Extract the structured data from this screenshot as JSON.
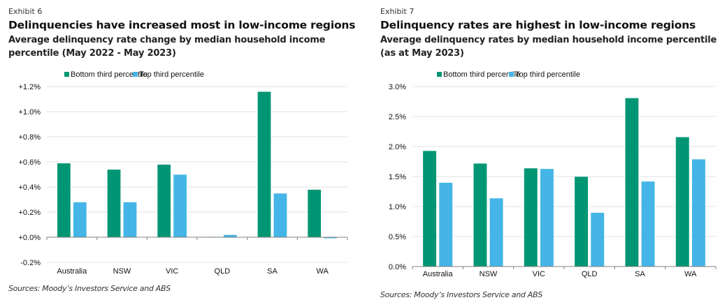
{
  "colors": {
    "bottom": "#009673",
    "top": "#44B5E6",
    "grid": "#e6e6e6",
    "axis": "#808080"
  },
  "chart_data": [
    {
      "type": "bar",
      "exhibit": "Exhibit 6",
      "title": "Delinquencies have increased most in low-income regions",
      "subtitle": "Average delinquency rate change by median household income percentile (May 2022 - May 2023)",
      "source": "Sources: Moody’s Investors Service and ABS",
      "categories": [
        "Australia",
        "NSW",
        "VIC",
        "QLD",
        "SA",
        "WA"
      ],
      "series": [
        {
          "name": "Bottom third percentile",
          "values": [
            0.59,
            0.54,
            0.58,
            0.005,
            1.16,
            0.38
          ]
        },
        {
          "name": "Top third percentile",
          "values": [
            0.28,
            0.28,
            0.5,
            0.02,
            0.35,
            -0.01
          ]
        }
      ],
      "yticks": [
        -0.2,
        0.0,
        0.2,
        0.4,
        0.6,
        0.8,
        1.0,
        1.2
      ],
      "ytick_labels": [
        "-0.2%",
        "+0.0%",
        "+0.2%",
        "+0.4%",
        "+0.6%",
        "+0.8%",
        "+1.0%",
        "+1.2%"
      ],
      "ylim": [
        -0.2,
        1.2
      ],
      "xlabel": "",
      "ylabel": "",
      "grid": true,
      "legend": "top"
    },
    {
      "type": "bar",
      "exhibit": "Exhibit 7",
      "title": "Delinquency rates are highest in low-income regions",
      "subtitle": "Average delinquency rates by median household income percentile (as at May 2023)",
      "source": "Sources: Moody’s Investors Service and ABS",
      "categories": [
        "Australia",
        "NSW",
        "VIC",
        "QLD",
        "SA",
        "WA"
      ],
      "series": [
        {
          "name": "Bottom third percentile",
          "values": [
            1.93,
            1.72,
            1.64,
            1.5,
            2.81,
            2.16
          ]
        },
        {
          "name": "Top third percentile",
          "values": [
            1.4,
            1.14,
            1.63,
            0.9,
            1.42,
            1.79
          ]
        }
      ],
      "yticks": [
        0.0,
        0.5,
        1.0,
        1.5,
        2.0,
        2.5,
        3.0
      ],
      "ytick_labels": [
        "0.0%",
        "0.5%",
        "1.0%",
        "1.5%",
        "2.0%",
        "2.5%",
        "3.0%"
      ],
      "ylim": [
        0.0,
        3.0
      ],
      "xlabel": "",
      "ylabel": "",
      "grid": true,
      "legend": "top"
    }
  ]
}
